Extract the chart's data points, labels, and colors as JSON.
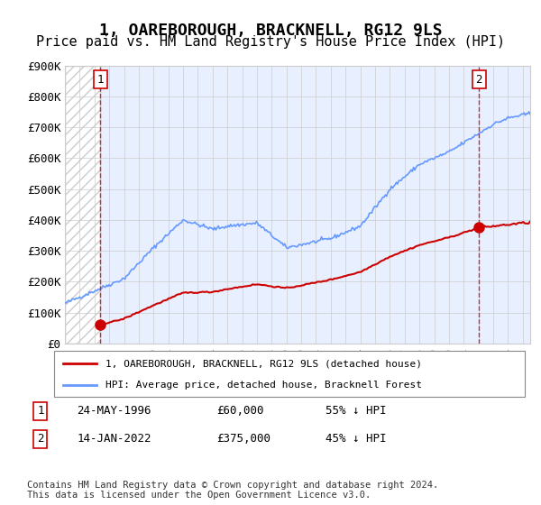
{
  "title": "1, OAREBOROUGH, BRACKNELL, RG12 9LS",
  "subtitle": "Price paid vs. HM Land Registry's House Price Index (HPI)",
  "title_fontsize": 13,
  "subtitle_fontsize": 11,
  "ylim": [
    0,
    900000
  ],
  "yticks": [
    0,
    100000,
    200000,
    300000,
    400000,
    500000,
    600000,
    700000,
    800000,
    900000
  ],
  "ytick_labels": [
    "£0",
    "£100K",
    "£200K",
    "£300K",
    "£400K",
    "£500K",
    "£600K",
    "£700K",
    "£800K",
    "£900K"
  ],
  "xlim_start": 1994.0,
  "xlim_end": 2025.5,
  "hpi_color": "#6699ff",
  "price_color": "#cc0000",
  "sale1_year": 1996.39,
  "sale1_price": 60000,
  "sale2_year": 2022.04,
  "sale2_price": 375000,
  "legend_line1": "1, OAREBOROUGH, BRACKNELL, RG12 9LS (detached house)",
  "legend_line2": "HPI: Average price, detached house, Bracknell Forest",
  "table_row1_num": "1",
  "table_row1_date": "24-MAY-1996",
  "table_row1_price": "£60,000",
  "table_row1_hpi": "55% ↓ HPI",
  "table_row2_num": "2",
  "table_row2_date": "14-JAN-2022",
  "table_row2_price": "£375,000",
  "table_row2_hpi": "45% ↓ HPI",
  "footnote": "Contains HM Land Registry data © Crown copyright and database right 2024.\nThis data is licensed under the Open Government Licence v3.0.",
  "bg_hatch_color": "#cccccc",
  "grid_color": "#cccccc",
  "plot_bg": "#e8f0ff"
}
